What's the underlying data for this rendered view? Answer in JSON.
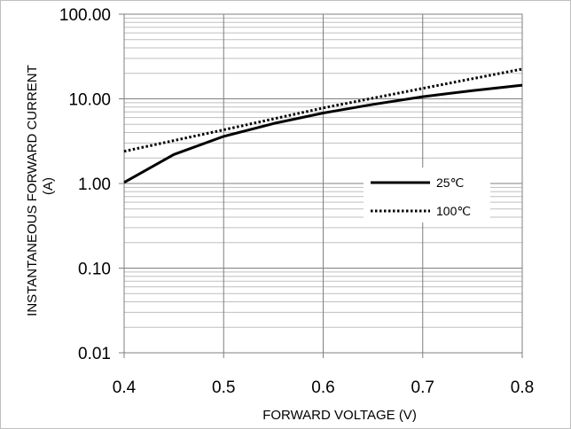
{
  "chart_data": {
    "type": "line",
    "title": "",
    "xlabel": "FORWARD VOLTAGE (V)",
    "ylabel": [
      "INSTANTANEOUS FORWARD CURRENT",
      "(A)"
    ],
    "xlim": [
      0.4,
      0.8
    ],
    "ylim": [
      0.01,
      100
    ],
    "yscale": "log",
    "grid": true,
    "x_ticks": [
      "0.4",
      "0.5",
      "0.6",
      "0.7",
      "0.8"
    ],
    "y_ticks": [
      "0.01",
      "0.10",
      "1.00",
      "10.00",
      "100.00"
    ],
    "legend_position": "right",
    "series": [
      {
        "name": "25℃",
        "style": "solid",
        "color": "#000000",
        "x": [
          0.4,
          0.45,
          0.5,
          0.55,
          0.6,
          0.65,
          0.7,
          0.75,
          0.8
        ],
        "y": [
          1.03,
          2.2,
          3.6,
          5.1,
          6.8,
          8.6,
          10.6,
          12.5,
          14.5
        ]
      },
      {
        "name": "100℃",
        "style": "dotted",
        "color": "#000000",
        "x": [
          0.4,
          0.5,
          0.6,
          0.7,
          0.8
        ],
        "y": [
          2.4,
          4.3,
          7.8,
          13.3,
          22.5
        ]
      }
    ]
  }
}
